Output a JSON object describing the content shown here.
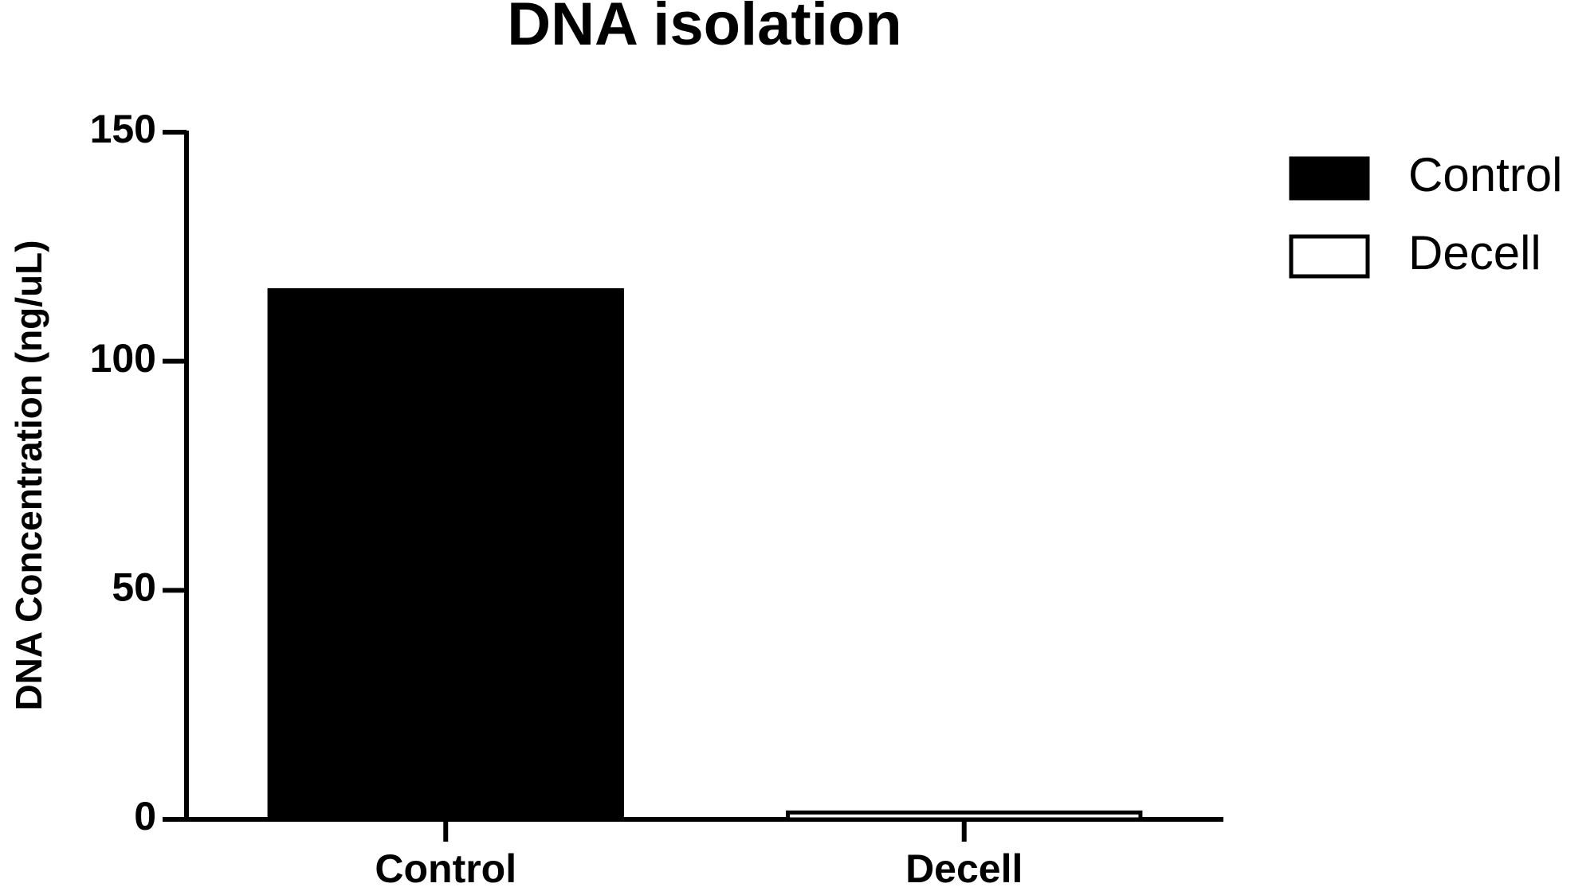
{
  "chart_data": {
    "type": "bar",
    "title": "DNA isolation",
    "y_label": "DNA Concentration (ng/uL)",
    "categories": [
      "Control",
      "Decell"
    ],
    "series": [
      {
        "name": "Control",
        "color": "#000000",
        "values": [
          115.5,
          null
        ]
      },
      {
        "name": "Decell",
        "color": "#ffffff",
        "values": [
          null,
          1.5
        ]
      }
    ],
    "ylim": [
      0,
      150
    ],
    "yticks": [
      0,
      50,
      100,
      150
    ],
    "legend": "right"
  }
}
